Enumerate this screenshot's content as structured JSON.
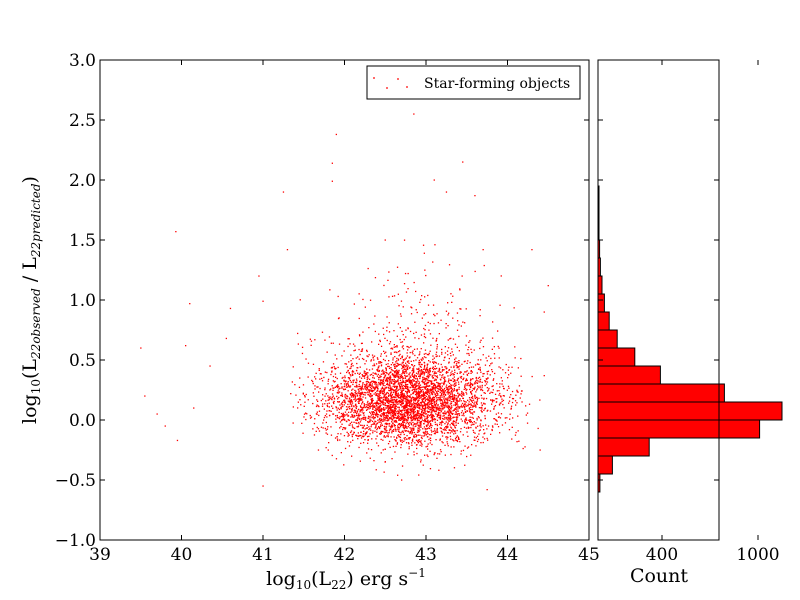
{
  "chart_data": [
    {
      "type": "scatter",
      "id": "main",
      "title": "",
      "xlabel": "log10(L22) erg s^-1",
      "ylabel": "log10(L22observed / L22predicted)",
      "xlim": [
        39,
        45
      ],
      "ylim": [
        -1.0,
        3.0
      ],
      "xticks": [
        "39",
        "40",
        "41",
        "42",
        "43",
        "44",
        "45"
      ],
      "yticks": [
        "−1.0",
        "−0.5",
        "0.0",
        "0.5",
        "1.0",
        "1.5",
        "2.0",
        "2.5",
        "3.0"
      ],
      "grid": false,
      "legend": {
        "position": "top-right",
        "entries": [
          "Star-forming objects"
        ]
      },
      "series": [
        {
          "name": "Star-forming objects",
          "color": "#ff0000",
          "marker": "dot",
          "approx_count": 4500,
          "bulk_distribution": {
            "x_center": 42.8,
            "x_spread": 0.55,
            "y_center": 0.15,
            "y_spread": 0.18
          },
          "outliers": [
            [
              39.5,
              0.6
            ],
            [
              39.55,
              0.2
            ],
            [
              39.7,
              0.05
            ],
            [
              39.8,
              -0.05
            ],
            [
              39.95,
              -0.17
            ],
            [
              39.93,
              1.57
            ],
            [
              40.1,
              0.97
            ],
            [
              40.05,
              0.62
            ],
            [
              40.15,
              0.1
            ],
            [
              40.35,
              0.45
            ],
            [
              40.55,
              0.68
            ],
            [
              40.6,
              0.93
            ],
            [
              40.95,
              1.2
            ],
            [
              41.0,
              0.99
            ],
            [
              41.25,
              1.9
            ],
            [
              41.3,
              1.42
            ],
            [
              41.0,
              -0.55
            ],
            [
              41.85,
              2.14
            ],
            [
              41.9,
              2.38
            ],
            [
              41.85,
              1.99
            ],
            [
              42.5,
              1.5
            ],
            [
              43.1,
              2.0
            ],
            [
              43.6,
              1.87
            ],
            [
              43.45,
              2.15
            ],
            [
              43.25,
              1.9
            ],
            [
              42.85,
              2.55
            ],
            [
              43.7,
              1.42
            ],
            [
              44.3,
              1.42
            ],
            [
              44.45,
              0.9
            ],
            [
              44.5,
              1.12
            ],
            [
              43.75,
              -0.58
            ],
            [
              42.7,
              -0.5
            ],
            [
              44.4,
              -0.25
            ],
            [
              44.45,
              0.37
            ]
          ]
        }
      ]
    },
    {
      "type": "bar",
      "id": "histogram",
      "orientation": "horizontal",
      "title": "",
      "xlabel": "Count",
      "xticks": [
        "400",
        "1000"
      ],
      "xlim": [
        0,
        1200
      ],
      "ylim": [
        -1.0,
        3.0
      ],
      "color": "#ff0000",
      "bins_lower_edge": [
        -0.6,
        -0.45,
        -0.3,
        -0.15,
        0.0,
        0.15,
        0.3,
        0.45,
        0.6,
        0.75,
        0.9,
        1.05,
        1.2,
        1.35,
        1.5,
        1.65,
        1.8
      ],
      "bin_width": 0.15,
      "values": [
        12,
        90,
        320,
        1010,
        1150,
        790,
        390,
        230,
        120,
        70,
        40,
        25,
        15,
        10,
        5,
        3,
        2
      ]
    }
  ]
}
